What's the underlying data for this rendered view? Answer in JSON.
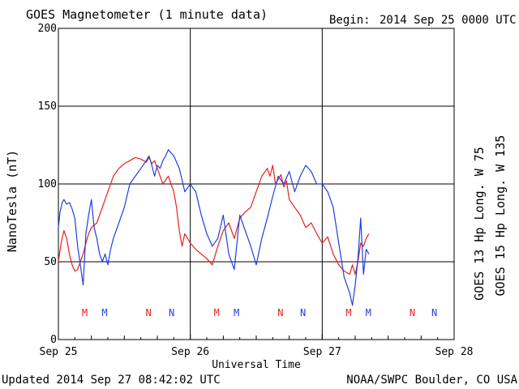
{
  "header": {
    "title": "GOES Magnetometer (1 minute data)",
    "begin_label": "Begin:",
    "begin_value": "2014 Sep 25 0000 UTC"
  },
  "footer": {
    "updated": "Updated 2014 Sep 27 08:42:02 UTC",
    "credit": "NOAA/SWPC Boulder, CO USA"
  },
  "chart_data": {
    "type": "line",
    "title": "GOES Magnetometer (1 minute data)",
    "xlabel": "Universal Time",
    "ylabel": "NanoTesla (nT)",
    "xlim": [
      0,
      72
    ],
    "ylim": [
      0,
      200
    ],
    "x_unit": "hours since 2014 Sep 25 0000 UTC",
    "x_ticks": [
      {
        "x": 0,
        "label": "Sep 25"
      },
      {
        "x": 24,
        "label": "Sep 26"
      },
      {
        "x": 48,
        "label": "Sep 27"
      },
      {
        "x": 72,
        "label": "Sep 28"
      }
    ],
    "y_ticks": [
      0,
      50,
      100,
      150,
      200
    ],
    "grid": true,
    "series": [
      {
        "name": "GOES 13 Hp  Long. W 75",
        "color": "#e8201f",
        "x": [
          0,
          0.5,
          1,
          1.5,
          2,
          2.5,
          3,
          3.5,
          4,
          4.5,
          5,
          5.5,
          6,
          7,
          8,
          9,
          10,
          11,
          12,
          13,
          14,
          15,
          16,
          16.5,
          17,
          17.5,
          18,
          19,
          20,
          20.5,
          21,
          21.5,
          22,
          22.5,
          23,
          23.5,
          24,
          25,
          26,
          27,
          28,
          29,
          30,
          31,
          32,
          33,
          34,
          35,
          36,
          37,
          38,
          38.5,
          39,
          39.5,
          40,
          40.5,
          41,
          41.5,
          42,
          43,
          44,
          45,
          46,
          47,
          48,
          49,
          50,
          51,
          52,
          53,
          53.5,
          54,
          54.5,
          55,
          55.5,
          56,
          56.5
        ],
        "y": [
          50,
          62,
          70,
          65,
          55,
          48,
          44,
          45,
          50,
          55,
          62,
          68,
          72,
          75,
          85,
          95,
          105,
          110,
          113,
          115,
          117,
          116,
          114,
          117,
          113,
          115,
          110,
          100,
          105,
          100,
          95,
          85,
          70,
          60,
          68,
          65,
          62,
          58,
          55,
          52,
          48,
          60,
          70,
          75,
          65,
          78,
          82,
          85,
          95,
          105,
          110,
          105,
          112,
          100,
          103,
          106,
          98,
          102,
          90,
          85,
          80,
          72,
          75,
          68,
          62,
          66,
          55,
          48,
          44,
          42,
          48,
          42,
          50,
          62,
          60,
          65,
          68
        ]
      },
      {
        "name": "GOES 15 Hp  Long. W 135",
        "color": "#1f3fe0",
        "x": [
          0,
          0.3,
          0.7,
          1,
          1.5,
          2,
          2.5,
          3,
          3.5,
          4,
          4.5,
          5,
          5.5,
          6,
          6.5,
          7,
          7.5,
          8,
          8.5,
          9,
          9.5,
          10,
          11,
          12,
          13,
          14,
          15,
          16,
          16.5,
          17,
          17.5,
          18,
          18.5,
          19,
          19.5,
          20,
          21,
          22,
          23,
          24,
          25,
          26,
          27,
          28,
          29,
          30,
          31,
          32,
          33,
          34,
          35,
          36,
          37,
          38,
          39,
          40,
          41,
          42,
          43,
          44,
          45,
          46,
          47,
          48,
          49,
          50,
          51,
          52,
          53,
          53.5,
          54,
          54.5,
          55,
          55.5,
          56,
          56.5
        ],
        "y": [
          72,
          82,
          88,
          90,
          87,
          88,
          84,
          78,
          60,
          48,
          35,
          68,
          80,
          90,
          72,
          65,
          55,
          50,
          55,
          48,
          58,
          65,
          75,
          85,
          100,
          105,
          110,
          115,
          118,
          112,
          105,
          112,
          110,
          115,
          118,
          122,
          118,
          110,
          95,
          100,
          95,
          80,
          68,
          60,
          65,
          80,
          55,
          45,
          80,
          70,
          60,
          48,
          65,
          78,
          92,
          105,
          100,
          108,
          95,
          105,
          112,
          108,
          100,
          100,
          95,
          85,
          62,
          40,
          30,
          22,
          35,
          52,
          78,
          42,
          58,
          55
        ]
      }
    ],
    "annotations": [
      {
        "x": 4.8,
        "text": "M",
        "series": 0
      },
      {
        "x": 8.4,
        "text": "M",
        "series": 1
      },
      {
        "x": 16.4,
        "text": "N",
        "series": 0
      },
      {
        "x": 20.6,
        "text": "N",
        "series": 1
      },
      {
        "x": 28.8,
        "text": "M",
        "series": 0
      },
      {
        "x": 32.4,
        "text": "M",
        "series": 1
      },
      {
        "x": 40.4,
        "text": "N",
        "series": 0
      },
      {
        "x": 44.5,
        "text": "N",
        "series": 1
      },
      {
        "x": 52.8,
        "text": "M",
        "series": 0
      },
      {
        "x": 56.4,
        "text": "M",
        "series": 1
      },
      {
        "x": 64.4,
        "text": "N",
        "series": 0
      },
      {
        "x": 68.4,
        "text": "N",
        "series": 1
      }
    ]
  }
}
